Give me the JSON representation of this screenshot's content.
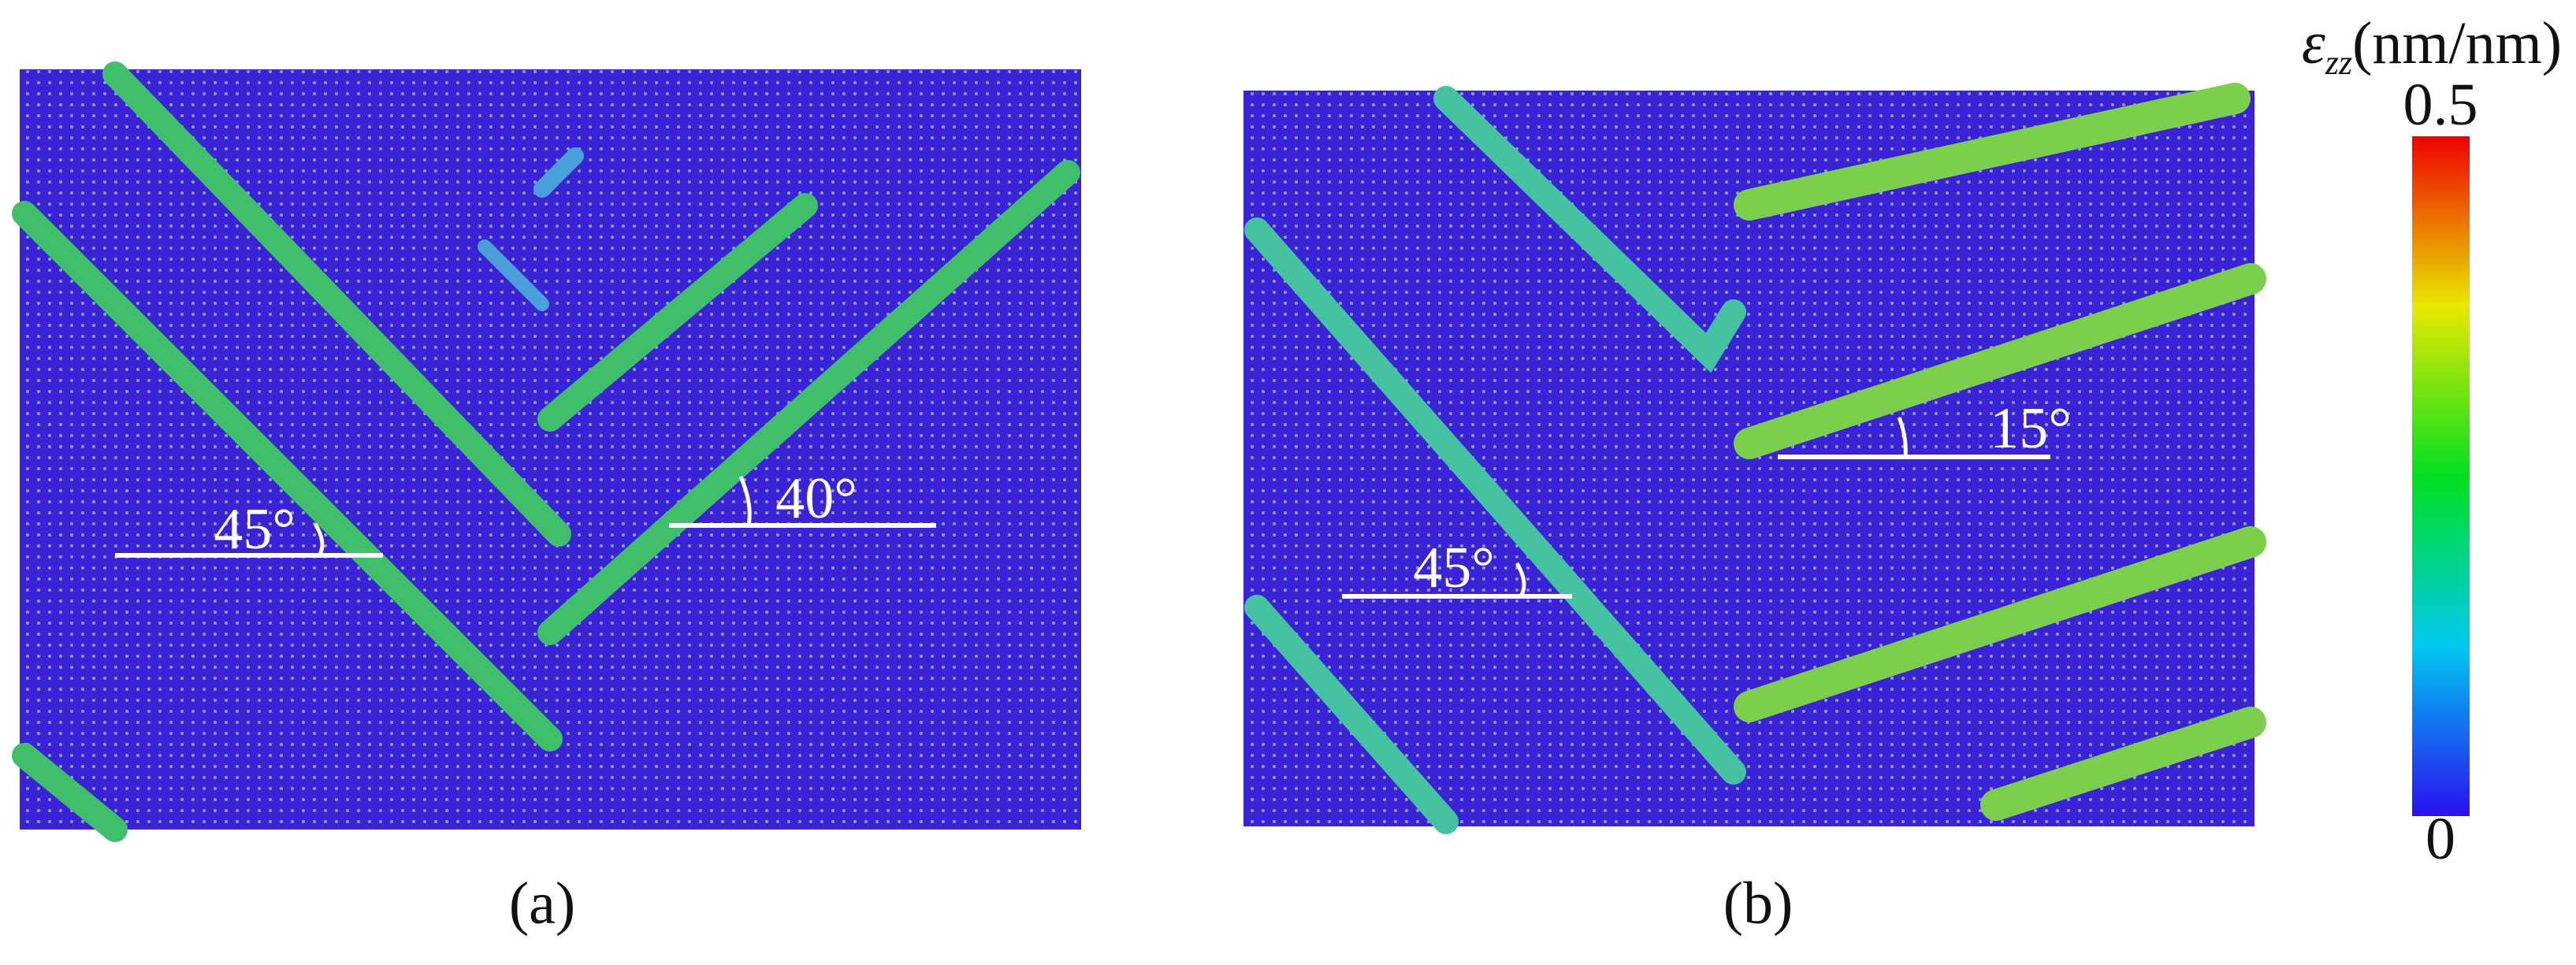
{
  "panels": [
    {
      "label": "(a)",
      "angles": [
        "45°",
        "40°"
      ]
    },
    {
      "label": "(b)",
      "angles": [
        "45°",
        "15°"
      ]
    }
  ],
  "colorbar": {
    "symbol": "ε",
    "subscript": "zz",
    "unit": "(nm/nm)",
    "max_label": "0.5",
    "min_label": "0"
  }
}
